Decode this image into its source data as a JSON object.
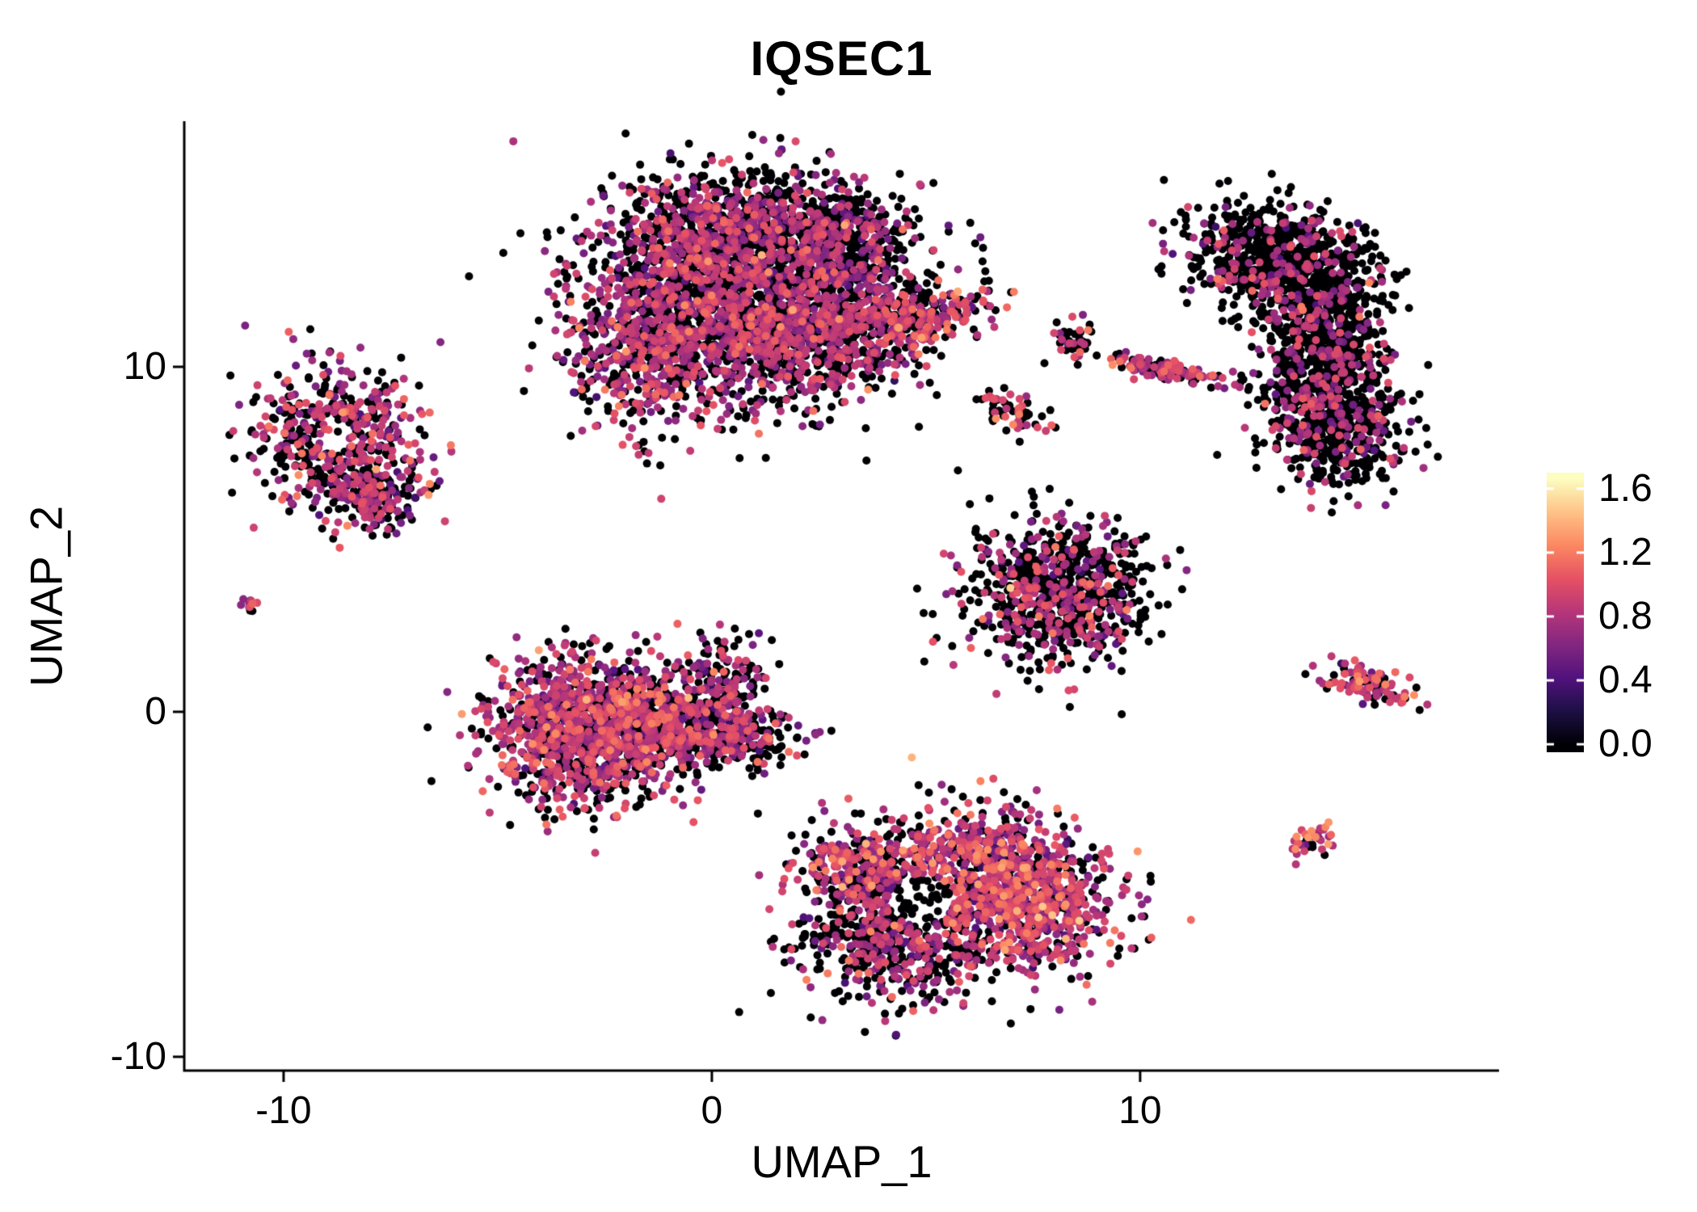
{
  "chart_data": {
    "type": "scatter",
    "title": "IQSEC1",
    "xlabel": "UMAP_1",
    "ylabel": "UMAP_2",
    "xlim": [
      -12.32,
      18.38
    ],
    "ylim": [
      -10.4,
      17.12
    ],
    "xticks": [
      -10,
      0,
      10
    ],
    "xtick_labels": [
      "-10",
      "0",
      "10"
    ],
    "yticks": [
      -10,
      0,
      10
    ],
    "ytick_labels": [
      "-10",
      "0",
      "10"
    ],
    "grid": false,
    "legend_position": "right",
    "point_radius_px": 5,
    "seed": 42,
    "scale_max": 1.66,
    "colorbar": {
      "values": [
        1.6,
        1.2,
        0.8,
        0.4,
        0.0
      ],
      "labels": [
        "1.6",
        "1.2",
        "0.8",
        "0.4",
        "0.0"
      ],
      "colormap": "magma"
    },
    "colormap_stops": [
      [
        0.0,
        "#000004"
      ],
      [
        0.125,
        "#1c1044"
      ],
      [
        0.25,
        "#51127c"
      ],
      [
        0.375,
        "#822681"
      ],
      [
        0.5,
        "#b63679"
      ],
      [
        0.625,
        "#e65164"
      ],
      [
        0.75,
        "#fb8861"
      ],
      [
        0.875,
        "#fec287"
      ],
      [
        1.0,
        "#fcfdbf"
      ]
    ],
    "clusters": [
      {
        "name": "top-center-a",
        "cx": 0.3,
        "cy": 12.6,
        "sx": 1.7,
        "sy": 1.4,
        "rot": 0,
        "n": 1500,
        "p_zero": 0.5,
        "v_mean": 0.78,
        "v_sd": 0.18
      },
      {
        "name": "top-center-b",
        "cx": 2.2,
        "cy": 11.0,
        "sx": 1.3,
        "sy": 1.1,
        "rot": 0,
        "n": 900,
        "p_zero": 0.55,
        "v_mean": 0.78,
        "v_sd": 0.18
      },
      {
        "name": "top-center-left-lobe",
        "cx": -1.3,
        "cy": 10.6,
        "sx": 1.0,
        "sy": 1.2,
        "rot": 0,
        "n": 600,
        "p_zero": 0.45,
        "v_mean": 0.8,
        "v_sd": 0.18
      },
      {
        "name": "top-center-upper",
        "cx": 1.0,
        "cy": 14.2,
        "sx": 1.4,
        "sy": 0.8,
        "rot": 0,
        "n": 500,
        "p_zero": 0.6,
        "v_mean": 0.76,
        "v_sd": 0.18
      },
      {
        "name": "top-center-arm",
        "cx": 4.7,
        "cy": 11.4,
        "sx": 0.9,
        "sy": 0.45,
        "rot": 18,
        "n": 260,
        "p_zero": 0.45,
        "v_mean": 0.88,
        "v_sd": 0.22
      },
      {
        "name": "top-center-right",
        "cx": 3.2,
        "cy": 13.4,
        "sx": 0.8,
        "sy": 0.8,
        "rot": 0,
        "n": 300,
        "p_zero": 0.7,
        "v_mean": 0.76,
        "v_sd": 0.18
      },
      {
        "name": "top-center-outliers",
        "cx": 6.2,
        "cy": 13.3,
        "sx": 0.3,
        "sy": 0.9,
        "rot": 0,
        "n": 8,
        "p_zero": 0.8,
        "v_mean": 0.7,
        "v_sd": 0.15
      },
      {
        "name": "left-ring",
        "cx": -8.8,
        "cy": 8.0,
        "sx": 1.0,
        "sy": 1.0,
        "rot": 0,
        "n": 520,
        "p_zero": 0.45,
        "v_mean": 0.8,
        "v_sd": 0.2
      },
      {
        "name": "left-ring-tail",
        "cx": -7.9,
        "cy": 6.2,
        "sx": 0.55,
        "sy": 0.5,
        "rot": 0,
        "n": 180,
        "p_zero": 0.5,
        "v_mean": 0.78,
        "v_sd": 0.2
      },
      {
        "name": "far-left-dot",
        "cx": -10.8,
        "cy": 3.1,
        "sx": 0.12,
        "sy": 0.12,
        "rot": 0,
        "n": 12,
        "p_zero": 0.5,
        "v_mean": 0.8,
        "v_sd": 0.15
      },
      {
        "name": "mid-left-a",
        "cx": -3.3,
        "cy": -0.6,
        "sx": 1.0,
        "sy": 1.0,
        "rot": 0,
        "n": 900,
        "p_zero": 0.35,
        "v_mean": 0.82,
        "v_sd": 0.2
      },
      {
        "name": "mid-left-b",
        "cx": -1.6,
        "cy": -0.3,
        "sx": 1.0,
        "sy": 0.9,
        "rot": 0,
        "n": 700,
        "p_zero": 0.38,
        "v_mean": 0.82,
        "v_sd": 0.2
      },
      {
        "name": "mid-left-tail",
        "cx": 0.6,
        "cy": -0.7,
        "sx": 0.8,
        "sy": 0.5,
        "rot": -10,
        "n": 250,
        "p_zero": 0.5,
        "v_mean": 0.8,
        "v_sd": 0.2
      },
      {
        "name": "mid-left-spur",
        "cx": 0.4,
        "cy": 1.1,
        "sx": 0.4,
        "sy": 0.6,
        "rot": 0,
        "n": 120,
        "p_zero": 0.55,
        "v_mean": 0.76,
        "v_sd": 0.18
      },
      {
        "name": "center-right-pentagon",
        "cx": 8.0,
        "cy": 3.5,
        "sx": 1.05,
        "sy": 1.1,
        "rot": 0,
        "n": 800,
        "p_zero": 0.68,
        "v_mean": 0.8,
        "v_sd": 0.2
      },
      {
        "name": "bottom-a",
        "cx": 6.3,
        "cy": -4.6,
        "sx": 1.4,
        "sy": 0.9,
        "rot": -8,
        "n": 800,
        "p_zero": 0.35,
        "v_mean": 0.85,
        "v_sd": 0.22
      },
      {
        "name": "bottom-b",
        "cx": 4.4,
        "cy": -6.6,
        "sx": 1.2,
        "sy": 0.85,
        "rot": 0,
        "n": 600,
        "p_zero": 0.55,
        "v_mean": 0.8,
        "v_sd": 0.2
      },
      {
        "name": "bottom-c",
        "cx": 7.6,
        "cy": -5.9,
        "sx": 0.9,
        "sy": 0.8,
        "rot": 0,
        "n": 500,
        "p_zero": 0.35,
        "v_mean": 0.85,
        "v_sd": 0.22
      },
      {
        "name": "bottom-d",
        "cx": 3.4,
        "cy": -4.5,
        "sx": 0.7,
        "sy": 0.55,
        "rot": 0,
        "n": 250,
        "p_zero": 0.45,
        "v_mean": 0.88,
        "v_sd": 0.22
      },
      {
        "name": "right-crescent-top",
        "cx": 13.2,
        "cy": 13.1,
        "sx": 1.1,
        "sy": 0.75,
        "rot": -20,
        "n": 700,
        "p_zero": 0.82,
        "v_mean": 0.76,
        "v_sd": 0.18
      },
      {
        "name": "right-crescent-mid",
        "cx": 14.3,
        "cy": 10.7,
        "sx": 0.7,
        "sy": 1.2,
        "rot": 0,
        "n": 700,
        "p_zero": 0.8,
        "v_mean": 0.76,
        "v_sd": 0.18
      },
      {
        "name": "right-crescent-bottom",
        "cx": 14.5,
        "cy": 8.3,
        "sx": 0.8,
        "sy": 0.9,
        "rot": 15,
        "n": 500,
        "p_zero": 0.75,
        "v_mean": 0.78,
        "v_sd": 0.18
      },
      {
        "name": "small-upper-dots",
        "cx": 8.4,
        "cy": 10.8,
        "sx": 0.25,
        "sy": 0.3,
        "rot": 0,
        "n": 45,
        "p_zero": 0.75,
        "v_mean": 0.8,
        "v_sd": 0.2
      },
      {
        "name": "small-mid-dots",
        "cx": 7.0,
        "cy": 8.7,
        "sx": 0.45,
        "sy": 0.28,
        "rot": -25,
        "n": 60,
        "p_zero": 0.55,
        "v_mean": 0.88,
        "v_sd": 0.25
      },
      {
        "name": "diagonal-streak",
        "cx": 10.6,
        "cy": 9.9,
        "sx": 0.6,
        "sy": 0.13,
        "rot": -14,
        "n": 130,
        "p_zero": 0.45,
        "v_mean": 0.82,
        "v_sd": 0.2
      },
      {
        "name": "right-small-elongated",
        "cx": 15.3,
        "cy": 0.8,
        "sx": 0.6,
        "sy": 0.25,
        "rot": -22,
        "n": 95,
        "p_zero": 0.35,
        "v_mean": 0.88,
        "v_sd": 0.25
      },
      {
        "name": "bottom-right-dot",
        "cx": 14.1,
        "cy": -3.7,
        "sx": 0.25,
        "sy": 0.22,
        "rot": 0,
        "n": 35,
        "p_zero": 0.3,
        "v_mean": 0.95,
        "v_sd": 0.25
      }
    ],
    "holes": [
      {
        "cx": -8.85,
        "cy": 8.05,
        "r": 0.52,
        "keep": 0.15,
        "force_zero": false
      },
      {
        "cx": 4.9,
        "cy": -5.45,
        "r": 0.75,
        "keep": 0.3,
        "force_zero": true
      }
    ]
  }
}
